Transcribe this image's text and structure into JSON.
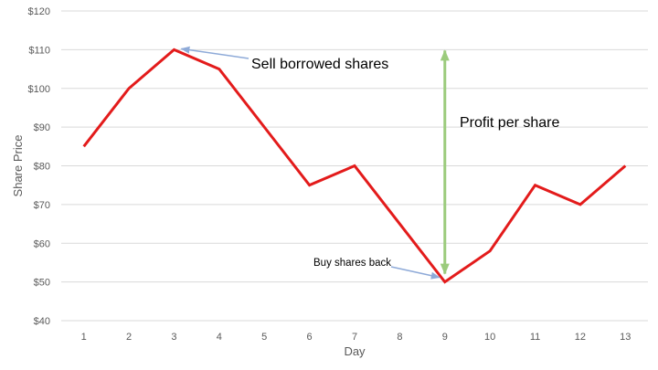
{
  "chart_data": {
    "type": "line",
    "title": "",
    "xlabel": "Day",
    "ylabel": "Share Price",
    "x": [
      1,
      2,
      3,
      4,
      5,
      6,
      7,
      8,
      9,
      10,
      11,
      12,
      13
    ],
    "y_ticks": [
      "$40",
      "$50",
      "$60",
      "$70",
      "$80",
      "$90",
      "$100",
      "$110",
      "$120"
    ],
    "ylim": [
      40,
      120
    ],
    "grid": true,
    "legend": "none",
    "series": [
      {
        "values": [
          85,
          100,
          110,
          105,
          90,
          75,
          80,
          65,
          50,
          58,
          75,
          70,
          80
        ],
        "color": "#e31b1b"
      }
    ],
    "annotations": [
      {
        "text": "Sell borrowed shares",
        "point_x": 3,
        "point_y": 110,
        "arrow_color": "#8eaad8"
      },
      {
        "text": "Buy shares back",
        "point_x": 9,
        "point_y": 50,
        "arrow_color": "#8eaad8"
      },
      {
        "text": "Profit per share",
        "from_y": 110,
        "to_y": 50,
        "at_x": 9,
        "arrow_color": "#9bcb7c"
      }
    ]
  }
}
